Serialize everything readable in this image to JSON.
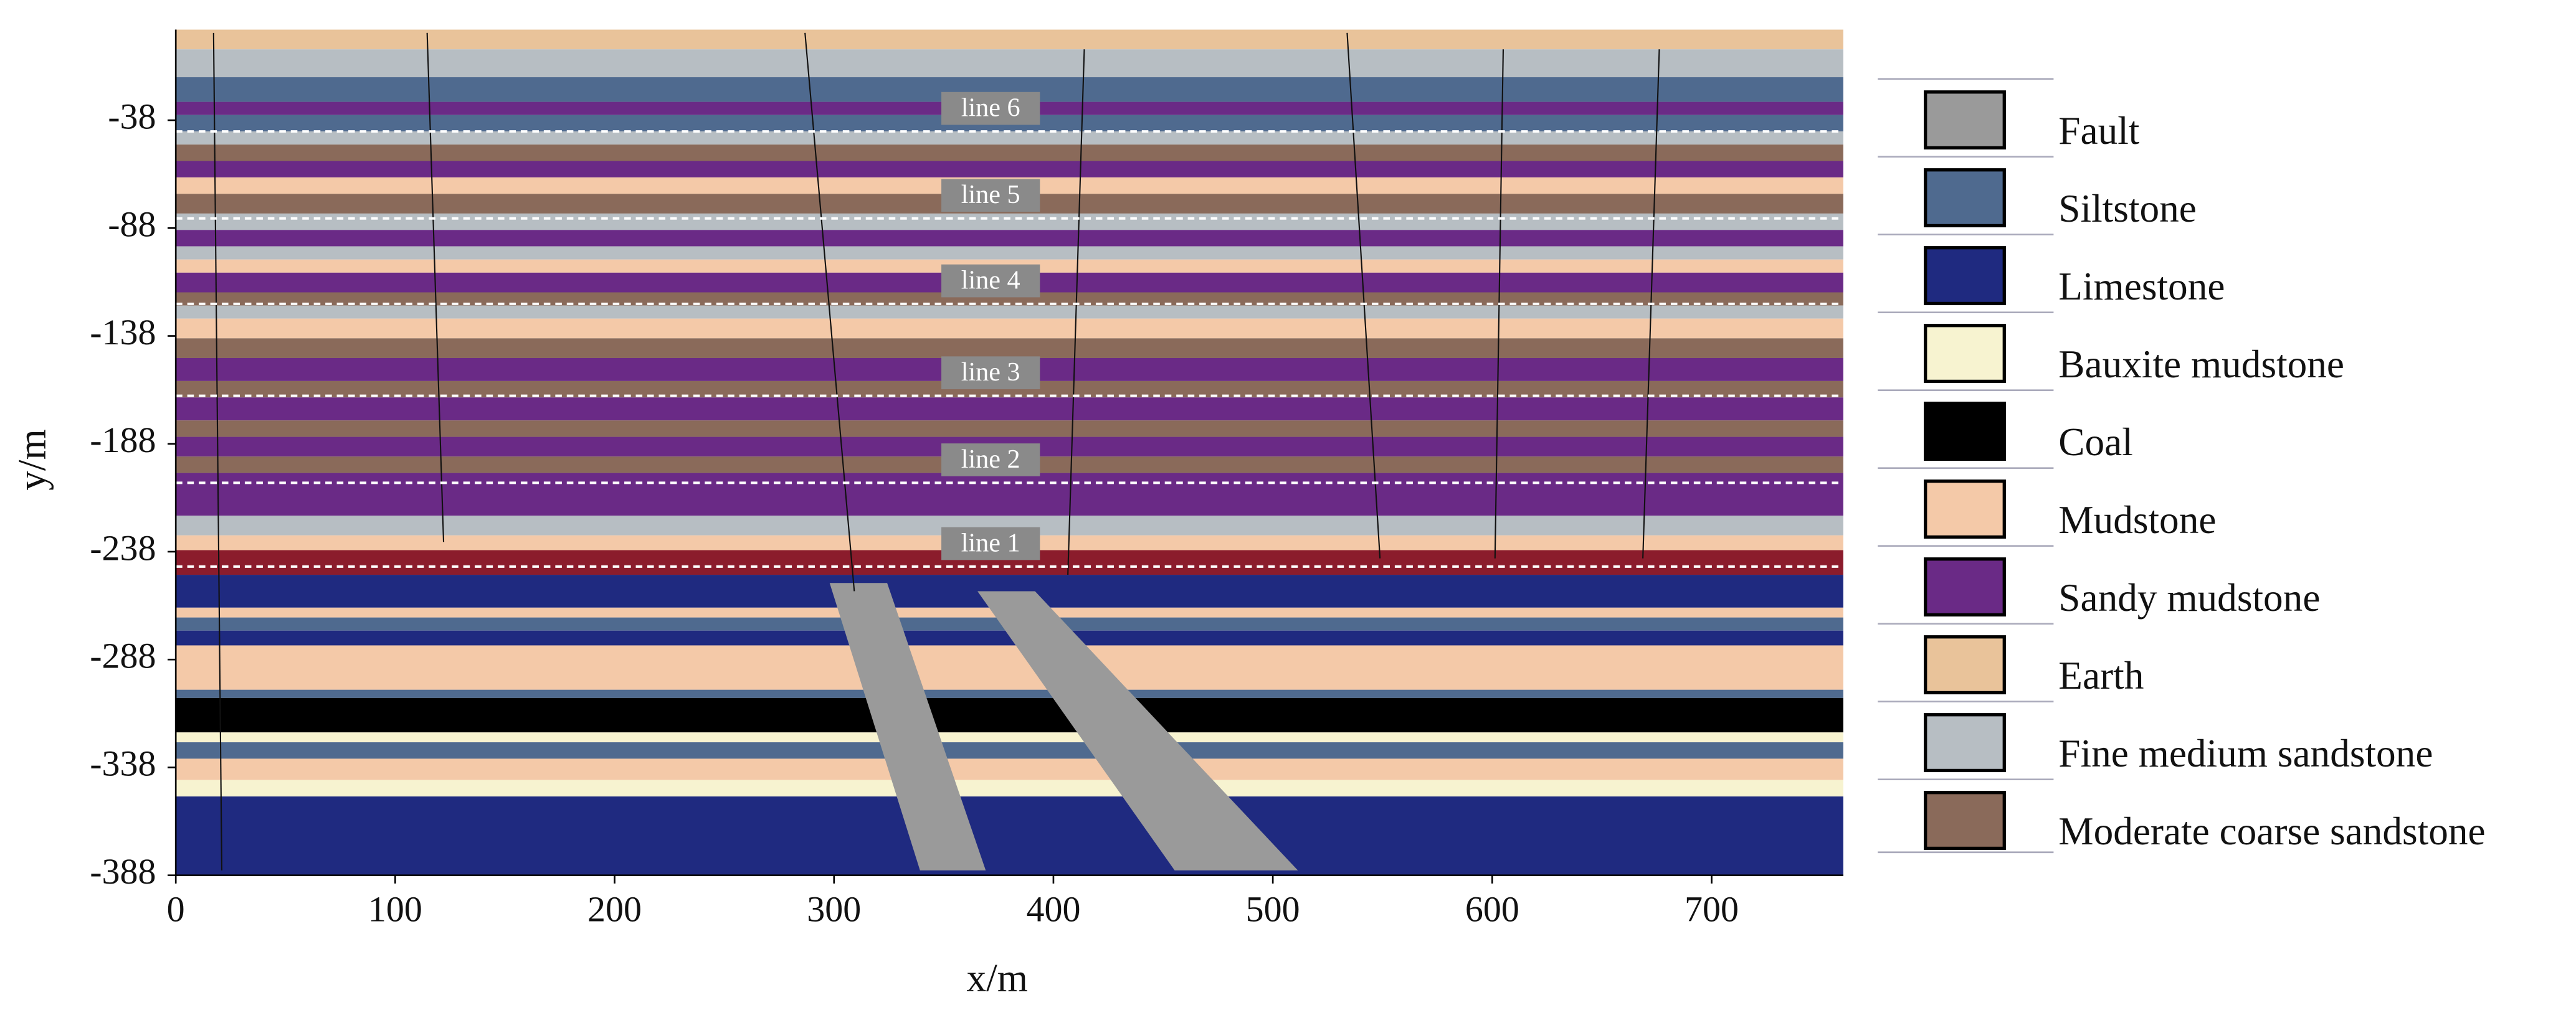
{
  "figure": {
    "x_label": "x/m",
    "y_label": "y/m",
    "xlim": [
      0,
      760
    ],
    "ylim": [
      -388,
      4
    ],
    "xticks": [
      0,
      100,
      200,
      300,
      400,
      500,
      600,
      700
    ],
    "yticks": [
      -388,
      -338,
      -288,
      -238,
      -188,
      -138,
      -88,
      -38
    ],
    "line_labels": [
      "line 6",
      "line 5",
      "line 4",
      "line 3",
      "line 2",
      "line 1"
    ],
    "legend": [
      {
        "name": "Fault",
        "color": "#9a9a9a"
      },
      {
        "name": "Siltstone",
        "color": "#4f6a8f"
      },
      {
        "name": "Limestone",
        "color": "#1f2a80"
      },
      {
        "name": "Bauxite mudstone",
        "color": "#f7f3d0"
      },
      {
        "name": "Coal",
        "color": "#000000"
      },
      {
        "name": "Mudstone",
        "color": "#f4c9a8"
      },
      {
        "name": "Sandy mudstone",
        "color": "#6a2a86"
      },
      {
        "name": "Earth",
        "color": "#e9c39a"
      },
      {
        "name": "Fine medium sandstone",
        "color": "#b7bec3"
      },
      {
        "name": "Moderate coarse sandstone",
        "color": "#8a6a5a"
      }
    ]
  }
}
